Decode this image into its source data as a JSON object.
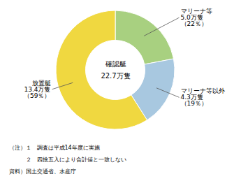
{
  "chart_data": {
    "type": "pie",
    "categories": [
      "マリーナ等\n5.0万隻\n（22％）",
      "マリーナ等以外\n4.3万隻\n（19％）",
      "放置艇\n13.4万隻\n（59％）"
    ],
    "values": [
      22,
      19,
      59
    ],
    "colors": [
      "#a8d080",
      "#a8c8e0",
      "#f0d840"
    ],
    "annotations": [
      "確認艇",
      "22.7万隻"
    ],
    "notes": [
      "（注）１　調査は平成14年度に実施",
      "　　　２　四捨五入により合計値と一致しない",
      "資料）国土交通省、水産庁"
    ]
  }
}
